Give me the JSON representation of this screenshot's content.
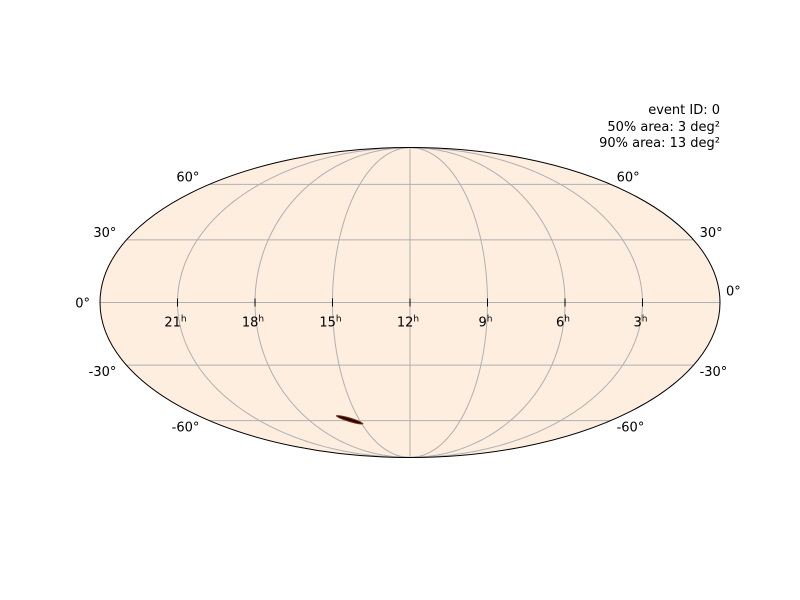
{
  "chart_data": {
    "type": "heatmap",
    "projection": "mollweide",
    "background_color": "#fdeee0",
    "grid": true,
    "grid_color": "#b0b0b0",
    "colormap": "cylon",
    "xlabel": "",
    "ylabel": "",
    "ra_ticks": [
      {
        "label": "21",
        "unit": "h",
        "ra_hours": 21
      },
      {
        "label": "18",
        "unit": "h",
        "ra_hours": 18
      },
      {
        "label": "15",
        "unit": "h",
        "ra_hours": 15
      },
      {
        "label": "12",
        "unit": "h",
        "ra_hours": 12
      },
      {
        "label": "9",
        "unit": "h",
        "ra_hours": 9
      },
      {
        "label": "6",
        "unit": "h",
        "ra_hours": 6
      },
      {
        "label": "3",
        "unit": "h",
        "ra_hours": 3
      }
    ],
    "dec_ticks": [
      {
        "label": "60°",
        "dec": 60
      },
      {
        "label": "30°",
        "dec": 30
      },
      {
        "label": "0°",
        "dec": 0
      },
      {
        "label": "-30°",
        "dec": -30
      },
      {
        "label": "-60°",
        "dec": -60
      }
    ],
    "xlim_ra_hours": [
      24,
      0
    ],
    "ylim_dec_deg": [
      -90,
      90
    ],
    "localization": {
      "center_ra_hours": 15.5,
      "center_dec_deg": -59,
      "extent_ra_hours": [
        16.2,
        14.9
      ],
      "extent_dec_deg": [
        -57,
        -62
      ],
      "color": "#7a2a0e"
    },
    "annotations": {
      "event_id": "event ID: 0",
      "area50": "50% area: 3 deg²",
      "area90": "90% area: 13 deg²"
    }
  }
}
